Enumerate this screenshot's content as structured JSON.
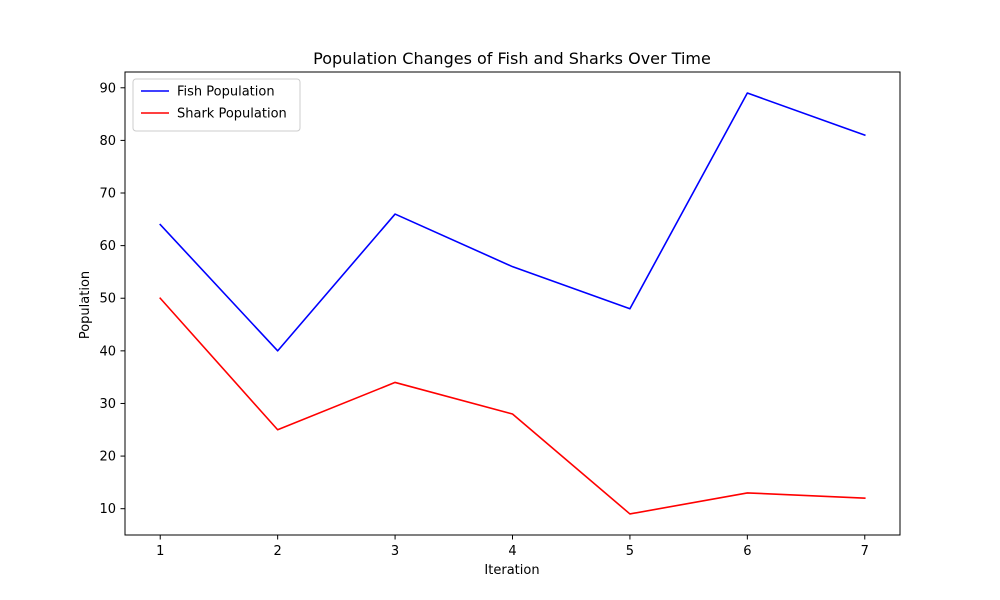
{
  "chart_data": {
    "type": "line",
    "title": "Population Changes of Fish and Sharks Over Time",
    "xlabel": "Iteration",
    "ylabel": "Population",
    "x": [
      1,
      2,
      3,
      4,
      5,
      6,
      7
    ],
    "xlim": [
      0.7,
      7.3
    ],
    "ylim": [
      5,
      93
    ],
    "xticks": [
      1,
      2,
      3,
      4,
      5,
      6,
      7
    ],
    "yticks": [
      10,
      20,
      30,
      40,
      50,
      60,
      70,
      80,
      90
    ],
    "grid": false,
    "legend_position": "top-left",
    "series": [
      {
        "name": "Fish Population",
        "color": "#0000ff",
        "values": [
          64,
          40,
          66,
          56,
          48,
          89,
          81
        ]
      },
      {
        "name": "Shark Population",
        "color": "#ff0000",
        "values": [
          50,
          25,
          34,
          28,
          9,
          13,
          12
        ]
      }
    ]
  }
}
